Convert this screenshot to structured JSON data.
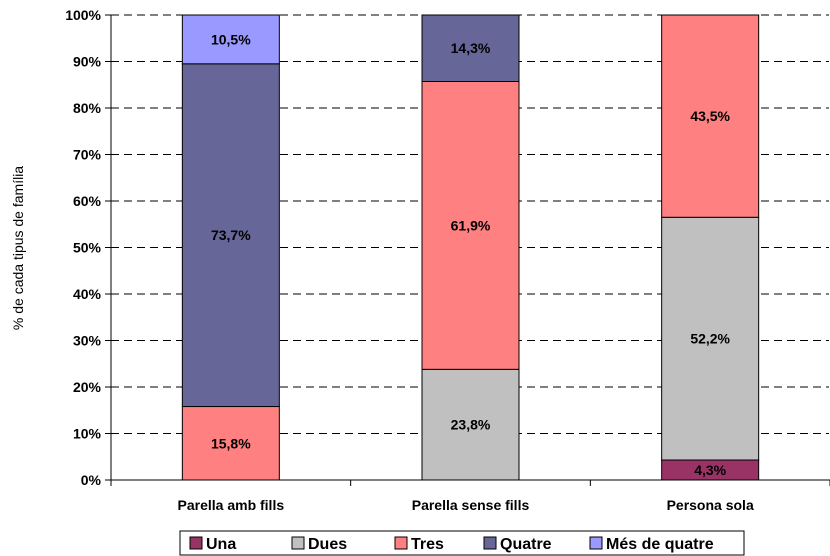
{
  "chart_data": {
    "type": "bar",
    "stacked": true,
    "normalized": true,
    "ylabel": "% de cada tipus de família",
    "ylim": [
      0,
      100
    ],
    "yticks": [
      "0%",
      "10%",
      "20%",
      "30%",
      "40%",
      "50%",
      "60%",
      "70%",
      "80%",
      "90%",
      "100%"
    ],
    "grid": "horizontal dashed",
    "legend_position": "bottom",
    "categories": [
      "Parella amb fills",
      "Parella sense fills",
      "Persona sola"
    ],
    "series": [
      {
        "name": "Una",
        "color": "#993366",
        "values": [
          0,
          0,
          4.3
        ],
        "labels": [
          "",
          "",
          "4,3%"
        ]
      },
      {
        "name": "Dues",
        "color": "#c0c0c0",
        "values": [
          0,
          23.8,
          52.2
        ],
        "labels": [
          "",
          "23,8%",
          "52,2%"
        ]
      },
      {
        "name": "Tres",
        "color": "#ff8080",
        "values": [
          15.8,
          61.9,
          43.5
        ],
        "labels": [
          "15,8%",
          "61,9%",
          "43,5%"
        ]
      },
      {
        "name": "Quatre",
        "color": "#666699",
        "values": [
          73.7,
          14.3,
          0
        ],
        "labels": [
          "73,7%",
          "14,3%",
          ""
        ]
      },
      {
        "name": "Més de quatre",
        "color": "#9999ff",
        "values": [
          10.5,
          0,
          0
        ],
        "labels": [
          "10,5%",
          "",
          ""
        ]
      }
    ]
  }
}
